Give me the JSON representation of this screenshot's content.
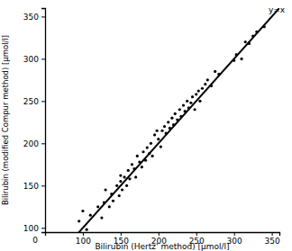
{
  "chart_data": {
    "type": "scatter",
    "x_label": "Bilirubin (Hertz' method) [µmol/l]",
    "y_label": "Bilirubin (modified Compur method) [µmol/l]",
    "annotations": [
      "0"
    ],
    "reference_line": {
      "label": "y=x",
      "x": [
        85,
        360
      ],
      "values": [
        85,
        360
      ]
    },
    "x": [
      95,
      100,
      105,
      110,
      120,
      125,
      128,
      130,
      135,
      138,
      140,
      145,
      148,
      150,
      150,
      152,
      155,
      158,
      160,
      162,
      165,
      168,
      170,
      172,
      175,
      178,
      180,
      183,
      185,
      188,
      190,
      192,
      195,
      198,
      200,
      203,
      205,
      208,
      210,
      213,
      215,
      218,
      220,
      222,
      225,
      228,
      230,
      233,
      235,
      238,
      240,
      243,
      245,
      248,
      250,
      253,
      255,
      258,
      262,
      265,
      270,
      275,
      280,
      300,
      303,
      310,
      315,
      320,
      325,
      330,
      340
    ],
    "values": [
      108,
      120,
      98,
      115,
      125,
      112,
      130,
      145,
      125,
      140,
      132,
      150,
      138,
      155,
      162,
      145,
      160,
      150,
      168,
      158,
      175,
      170,
      160,
      185,
      178,
      172,
      190,
      180,
      195,
      188,
      200,
      185,
      210,
      215,
      205,
      196,
      215,
      220,
      212,
      225,
      218,
      230,
      222,
      235,
      228,
      240,
      232,
      245,
      238,
      250,
      242,
      248,
      255,
      240,
      258,
      262,
      250,
      265,
      270,
      275,
      268,
      285,
      282,
      298,
      305,
      300,
      320,
      318,
      327,
      332,
      338
    ],
    "color": "#000000",
    "marker": "circle",
    "xlim": [
      50,
      360
    ],
    "ylim": [
      95,
      360
    ],
    "xticks": [
      100,
      150,
      200,
      250,
      300,
      350
    ],
    "yticks": [
      100,
      150,
      200,
      250,
      300,
      350
    ],
    "grid": false
  }
}
